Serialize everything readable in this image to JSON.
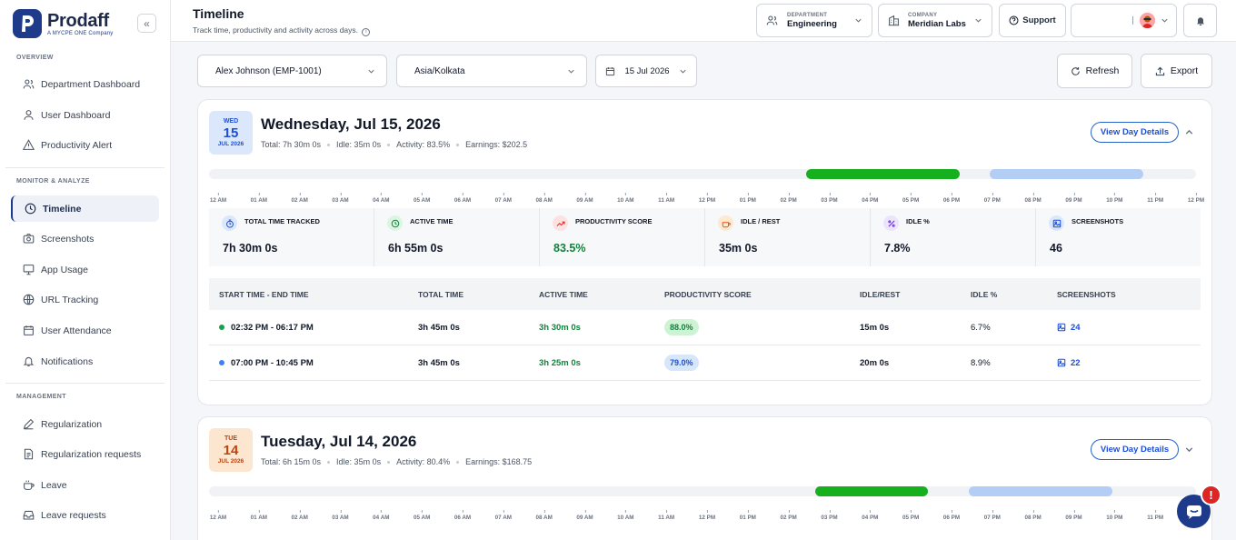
{
  "brand": {
    "name": "Prodaff",
    "tagline": "A MYCPE ONE Company"
  },
  "sidebar": {
    "sections": [
      {
        "title": "OVERVIEW"
      },
      {
        "title": "MONITOR & ANALYZE"
      },
      {
        "title": "MANAGEMENT"
      }
    ],
    "items": [
      {
        "label": "Department Dashboard",
        "icon": "users-icon"
      },
      {
        "label": "User Dashboard",
        "icon": "user-icon"
      },
      {
        "label": "Productivity Alert",
        "icon": "alert-triangle-icon"
      },
      {
        "label": "Timeline",
        "icon": "clock-icon"
      },
      {
        "label": "Screenshots",
        "icon": "camera-icon"
      },
      {
        "label": "App Usage",
        "icon": "monitor-icon"
      },
      {
        "label": "URL Tracking",
        "icon": "globe-icon"
      },
      {
        "label": "User Attendance",
        "icon": "calendar-icon"
      },
      {
        "label": "Notifications",
        "icon": "bell-icon"
      },
      {
        "label": "Regularization",
        "icon": "pen-icon"
      },
      {
        "label": "Regularization requests",
        "icon": "document-icon"
      },
      {
        "label": "Leave",
        "icon": "coffee-icon"
      },
      {
        "label": "Leave requests",
        "icon": "inbox-icon"
      }
    ],
    "active": "Timeline"
  },
  "header": {
    "title": "Timeline",
    "subtitle": "Track time, productivity and activity across days.",
    "department": {
      "label": "DEPARTMENT",
      "value": "Engineering"
    },
    "company": {
      "label": "COMPANY",
      "value": "Meridian Labs"
    },
    "support": "Support"
  },
  "filters": {
    "user": "Alex Johnson (EMP-1001)",
    "timezone": "Asia/Kolkata",
    "date": "15 Jul 2026",
    "refresh": "Refresh",
    "export": "Export"
  },
  "hours": [
    "12 AM",
    "01 AM",
    "02 AM",
    "03 AM",
    "04 AM",
    "05 AM",
    "06 AM",
    "07 AM",
    "08 AM",
    "09 AM",
    "10 AM",
    "11 AM",
    "12 PM",
    "01 PM",
    "02 PM",
    "03 PM",
    "04 PM",
    "05 PM",
    "06 PM",
    "07 PM",
    "08 PM",
    "09 PM",
    "10 PM",
    "11 PM",
    "12 PM"
  ],
  "stat_labels": [
    "TOTAL TIME TRACKED",
    "ACTIVE TIME",
    "PRODUCTIVITY SCORE",
    "IDLE / REST",
    "IDLE %",
    "SCREENSHOTS"
  ],
  "table_headers": [
    "START TIME - END TIME",
    "TOTAL TIME",
    "ACTIVE TIME",
    "PRODUCTIVITY SCORE",
    "IDLE/REST",
    "IDLE %",
    "SCREENSHOTS"
  ],
  "view_details": "View Day Details",
  "days": [
    {
      "dow": "WED",
      "day": "15",
      "mon": "JUL 2026",
      "title": "Wednesday, Jul 15, 2026",
      "total": "Total: 7h 30m 0s",
      "idle": "Idle: 35m 0s",
      "activity": "Activity: 83.5%",
      "earnings": "Earnings: $202.5",
      "stats": [
        "7h 30m 0s",
        "6h 55m 0s",
        "83.5%",
        "35m 0s",
        "7.8%",
        "46"
      ],
      "sessions": [
        {
          "range": "02:32 PM - 06:17 PM",
          "total": "3h 45m 0s",
          "active": "3h 30m 0s",
          "score": "88.0%",
          "idle": "15m 0s",
          "idle_pct": "6.7%",
          "shots": "24"
        },
        {
          "range": "07:00 PM - 10:45 PM",
          "total": "3h 45m 0s",
          "active": "3h 25m 0s",
          "score": "79.0%",
          "idle": "20m 0s",
          "idle_pct": "8.9%",
          "shots": "22"
        }
      ]
    },
    {
      "dow": "TUE",
      "day": "14",
      "mon": "JUL 2026",
      "title": "Tuesday, Jul 14, 2026",
      "total": "Total: 6h 15m 0s",
      "idle": "Idle: 35m 0s",
      "activity": "Activity: 80.4%",
      "earnings": "Earnings: $168.75"
    }
  ],
  "colors": {
    "primary": "#1e3a8a",
    "session_green": "#16b01e",
    "session_blue": "#b3cdf5",
    "positive": "#15803d",
    "alert": "#dc2626"
  }
}
